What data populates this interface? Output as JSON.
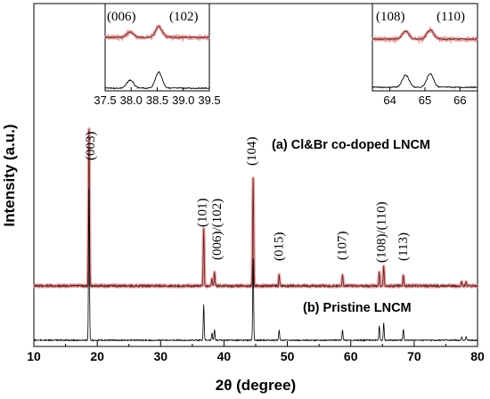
{
  "chart_data": {
    "type": "line",
    "title": "",
    "xlabel": "2θ (degree)",
    "ylabel": "Intensity (a.u.)",
    "xlim": [
      10,
      80
    ],
    "x_ticks": [
      10,
      20,
      30,
      40,
      50,
      60,
      70,
      80
    ],
    "grid": false,
    "legend": "none",
    "series": [
      {
        "name": "(a) Cl&Br co-doped LNCM",
        "color": "#e8a0a0",
        "line_color": "#5a2020",
        "baseline": 0.2,
        "peaks": [
          {
            "x": 18.7,
            "h": 0.88,
            "w": 0.1
          },
          {
            "x": 36.8,
            "h": 0.32,
            "w": 0.1
          },
          {
            "x": 38.1,
            "h": 0.04,
            "w": 0.1
          },
          {
            "x": 38.5,
            "h": 0.08,
            "w": 0.1
          },
          {
            "x": 44.6,
            "h": 0.6,
            "w": 0.1
          },
          {
            "x": 48.7,
            "h": 0.06,
            "w": 0.1
          },
          {
            "x": 58.7,
            "h": 0.06,
            "w": 0.1
          },
          {
            "x": 64.5,
            "h": 0.08,
            "w": 0.1
          },
          {
            "x": 65.2,
            "h": 0.11,
            "w": 0.1
          },
          {
            "x": 68.3,
            "h": 0.06,
            "w": 0.1
          },
          {
            "x": 77.5,
            "h": 0.02,
            "w": 0.1
          },
          {
            "x": 78.2,
            "h": 0.02,
            "w": 0.1
          }
        ]
      },
      {
        "name": "(b) Pristine LNCM",
        "color": "#000000",
        "line_color": "#000000",
        "baseline": 0.0,
        "peaks": [
          {
            "x": 18.7,
            "h": 0.85,
            "w": 0.1
          },
          {
            "x": 36.8,
            "h": 0.2,
            "w": 0.1
          },
          {
            "x": 38.1,
            "h": 0.04,
            "w": 0.1
          },
          {
            "x": 38.5,
            "h": 0.06,
            "w": 0.1
          },
          {
            "x": 44.6,
            "h": 0.46,
            "w": 0.1
          },
          {
            "x": 48.7,
            "h": 0.06,
            "w": 0.1
          },
          {
            "x": 58.7,
            "h": 0.06,
            "w": 0.1
          },
          {
            "x": 64.5,
            "h": 0.08,
            "w": 0.1
          },
          {
            "x": 65.2,
            "h": 0.1,
            "w": 0.1
          },
          {
            "x": 68.3,
            "h": 0.06,
            "w": 0.1
          },
          {
            "x": 77.5,
            "h": 0.02,
            "w": 0.1
          },
          {
            "x": 78.2,
            "h": 0.02,
            "w": 0.1
          }
        ]
      }
    ],
    "annotations": [
      {
        "text": "(003)",
        "x": 18.7
      },
      {
        "text": "(101)",
        "x": 36.8
      },
      {
        "text": "(006)/(102)",
        "x": 38.4
      },
      {
        "text": "(104)",
        "x": 44.6
      },
      {
        "text": "(015)",
        "x": 48.7
      },
      {
        "text": "(107)",
        "x": 58.7
      },
      {
        "text": "(108)/(110)",
        "x": 64.9
      },
      {
        "text": "(113)",
        "x": 68.3
      }
    ],
    "insets": [
      {
        "xlim": [
          37.5,
          39.5
        ],
        "x_tick_labels": [
          "37.5",
          "38.0",
          "38.5",
          "39.0",
          "39.5"
        ],
        "labels": [
          "(006)",
          "(102)"
        ],
        "peaks": [
          {
            "x": 37.98,
            "h": 0.5
          },
          {
            "x": 38.53,
            "h": 1.0
          }
        ]
      },
      {
        "xlim": [
          63.5,
          66.5
        ],
        "x_tick_labels": [
          "64",
          "65",
          "66"
        ],
        "labels": [
          "(108)",
          "(110)"
        ],
        "peaks": [
          {
            "x": 64.45,
            "h": 0.75
          },
          {
            "x": 65.15,
            "h": 0.85
          }
        ]
      }
    ]
  }
}
